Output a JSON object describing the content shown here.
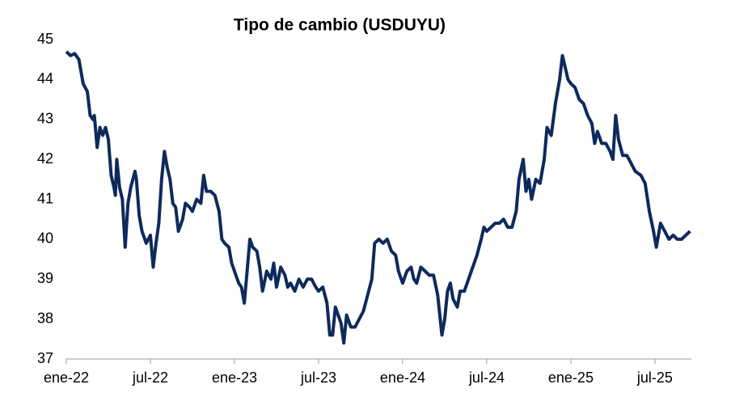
{
  "chart_data": {
    "type": "line",
    "title": "Tipo de cambio (USDUYU)",
    "xlim": [
      0,
      44.6
    ],
    "ylim": [
      37,
      45
    ],
    "yticks": [
      37,
      38,
      39,
      40,
      41,
      42,
      43,
      44,
      45
    ],
    "xticks": [
      {
        "value": 0,
        "label": "ene-22"
      },
      {
        "value": 6,
        "label": "jul-22"
      },
      {
        "value": 12,
        "label": "ene-23"
      },
      {
        "value": 18,
        "label": "jul-23"
      },
      {
        "value": 24,
        "label": "ene-24"
      },
      {
        "value": 30,
        "label": "jul-24"
      },
      {
        "value": 36,
        "label": "ene-25"
      },
      {
        "value": 42,
        "label": "jul-25"
      }
    ],
    "grid": false,
    "series": [
      {
        "color": "#0e2a5c",
        "x": [
          0,
          0.3,
          0.6,
          0.9,
          1.2,
          1.5,
          1.7,
          1.9,
          2.0,
          2.2,
          2.4,
          2.6,
          2.8,
          3.0,
          3.2,
          3.4,
          3.5,
          3.6,
          3.8,
          4.0,
          4.2,
          4.4,
          4.6,
          4.9,
          5.0,
          5.2,
          5.4,
          5.7,
          6.0,
          6.2,
          6.4,
          6.6,
          6.8,
          7.0,
          7.2,
          7.4,
          7.6,
          7.8,
          8.0,
          8.3,
          8.5,
          8.8,
          9.0,
          9.3,
          9.6,
          9.8,
          10.0,
          10.3,
          10.6,
          10.9,
          11.1,
          11.3,
          11.6,
          11.8,
          12.0,
          12.3,
          12.5,
          12.7,
          12.9,
          13.1,
          13.3,
          13.6,
          13.8,
          14.0,
          14.3,
          14.6,
          14.8,
          15.0,
          15.3,
          15.6,
          15.8,
          16.0,
          16.3,
          16.6,
          16.9,
          17.2,
          17.5,
          17.8,
          18.0,
          18.3,
          18.6,
          18.8,
          19.0,
          19.2,
          19.4,
          19.6,
          19.8,
          20.0,
          20.3,
          20.6,
          20.9,
          21.2,
          21.5,
          21.8,
          22.0,
          22.3,
          22.6,
          22.9,
          23.2,
          23.5,
          23.7,
          24.0,
          24.3,
          24.6,
          24.8,
          25.0,
          25.3,
          25.6,
          25.9,
          26.2,
          26.5,
          26.8,
          27.0,
          27.2,
          27.4,
          27.6,
          27.9,
          28.1,
          28.4,
          28.7,
          29.0,
          29.3,
          29.6,
          29.8,
          30.0,
          30.3,
          30.6,
          30.9,
          31.2,
          31.5,
          31.8,
          32.1,
          32.3,
          32.6,
          32.8,
          33.0,
          33.2,
          33.5,
          33.8,
          34.1,
          34.3,
          34.6,
          34.9,
          35.2,
          35.4,
          35.6,
          35.8,
          36.0,
          36.3,
          36.6,
          36.9,
          37.2,
          37.5,
          37.7,
          37.9,
          38.2,
          38.5,
          38.8,
          39.0,
          39.2,
          39.4,
          39.7,
          40.0,
          40.3,
          40.6,
          41.0,
          41.3,
          41.6,
          41.9,
          42.1,
          42.4,
          42.7,
          43.0,
          43.3,
          43.6,
          43.9,
          44.2,
          44.5
        ],
        "values": [
          44.7,
          44.6,
          44.65,
          44.5,
          43.9,
          43.7,
          43.1,
          43.0,
          43.1,
          42.3,
          42.8,
          42.6,
          42.8,
          42.5,
          41.6,
          41.3,
          41.1,
          42.0,
          41.3,
          41.0,
          39.8,
          40.9,
          41.3,
          41.7,
          41.5,
          40.6,
          40.2,
          39.9,
          40.1,
          39.3,
          39.9,
          40.4,
          41.5,
          42.2,
          41.8,
          41.5,
          40.9,
          40.8,
          40.2,
          40.5,
          40.9,
          40.8,
          40.7,
          41.0,
          40.9,
          41.6,
          41.2,
          41.2,
          41.1,
          40.7,
          40.0,
          39.9,
          39.8,
          39.4,
          39.2,
          38.9,
          38.8,
          38.4,
          39.2,
          40.0,
          39.8,
          39.7,
          39.3,
          38.7,
          39.2,
          39.0,
          39.4,
          38.8,
          39.3,
          39.1,
          38.8,
          38.9,
          38.7,
          39.0,
          38.8,
          39.0,
          39.0,
          38.8,
          38.7,
          38.8,
          38.4,
          37.6,
          37.6,
          38.3,
          38.1,
          37.9,
          37.4,
          38.1,
          37.8,
          37.8,
          38.0,
          38.2,
          38.6,
          39.0,
          39.9,
          40.0,
          39.9,
          40.0,
          39.7,
          39.6,
          39.2,
          38.9,
          39.2,
          39.3,
          39.0,
          38.9,
          39.3,
          39.2,
          39.1,
          39.1,
          38.6,
          37.6,
          38.0,
          38.7,
          38.9,
          38.5,
          38.3,
          38.7,
          38.7,
          39.0,
          39.3,
          39.6,
          40.0,
          40.3,
          40.2,
          40.3,
          40.4,
          40.4,
          40.5,
          40.3,
          40.3,
          40.7,
          41.5,
          42.0,
          41.2,
          41.5,
          41.0,
          41.5,
          41.4,
          42.0,
          42.8,
          42.6,
          43.4,
          44.0,
          44.6,
          44.3,
          44.0,
          43.9,
          43.8,
          43.5,
          43.4,
          43.1,
          42.9,
          42.4,
          42.7,
          42.4,
          42.4,
          42.2,
          42.0,
          43.1,
          42.5,
          42.1,
          42.1,
          41.9,
          41.7,
          41.6,
          41.4,
          40.7,
          40.2,
          39.8,
          40.4,
          40.2,
          40.0,
          40.1,
          40.0,
          40.0,
          40.1,
          40.2
        ]
      }
    ]
  }
}
